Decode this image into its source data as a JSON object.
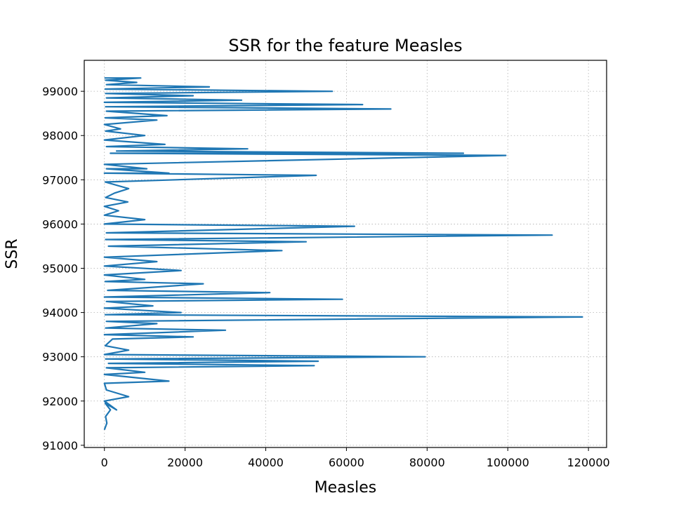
{
  "chart_data": {
    "type": "line",
    "title": "SSR for the feature Measles",
    "xlabel": "Measles",
    "ylabel": "SSR",
    "xlim": [
      -5000,
      124500
    ],
    "ylim": [
      90950,
      99700
    ],
    "xticks": [
      0,
      20000,
      40000,
      60000,
      80000,
      100000,
      120000
    ],
    "yticks": [
      91000,
      92000,
      93000,
      94000,
      95000,
      96000,
      97000,
      98000,
      99000
    ],
    "grid": true,
    "series": [
      {
        "name": "SSR",
        "color": "#1f77b4",
        "points": [
          [
            0,
            91350
          ],
          [
            600,
            91500
          ],
          [
            300,
            91650
          ],
          [
            1500,
            91800
          ],
          [
            200,
            91950
          ],
          [
            3000,
            91800
          ],
          [
            0,
            92000
          ],
          [
            6000,
            92100
          ],
          [
            500,
            92250
          ],
          [
            0,
            92400
          ],
          [
            16000,
            92450
          ],
          [
            0,
            92600
          ],
          [
            10000,
            92650
          ],
          [
            500,
            92750
          ],
          [
            52000,
            92800
          ],
          [
            1000,
            92850
          ],
          [
            53000,
            92900
          ],
          [
            300,
            92950
          ],
          [
            79500,
            93000
          ],
          [
            0,
            93050
          ],
          [
            6000,
            93150
          ],
          [
            200,
            93250
          ],
          [
            2000,
            93400
          ],
          [
            22000,
            93450
          ],
          [
            0,
            93500
          ],
          [
            30000,
            93600
          ],
          [
            300,
            93650
          ],
          [
            13000,
            93750
          ],
          [
            500,
            93800
          ],
          [
            118500,
            93900
          ],
          [
            200,
            93950
          ],
          [
            19000,
            94000
          ],
          [
            0,
            94100
          ],
          [
            12000,
            94150
          ],
          [
            500,
            94250
          ],
          [
            59000,
            94300
          ],
          [
            0,
            94350
          ],
          [
            41000,
            94450
          ],
          [
            800,
            94500
          ],
          [
            24500,
            94650
          ],
          [
            200,
            94700
          ],
          [
            10000,
            94750
          ],
          [
            0,
            94850
          ],
          [
            19000,
            94950
          ],
          [
            0,
            95050
          ],
          [
            13000,
            95150
          ],
          [
            0,
            95250
          ],
          [
            44000,
            95400
          ],
          [
            1000,
            95500
          ],
          [
            50000,
            95600
          ],
          [
            300,
            95650
          ],
          [
            111000,
            95750
          ],
          [
            500,
            95800
          ],
          [
            62000,
            95950
          ],
          [
            0,
            96000
          ],
          [
            10000,
            96100
          ],
          [
            0,
            96200
          ],
          [
            3500,
            96300
          ],
          [
            0,
            96400
          ],
          [
            5800,
            96500
          ],
          [
            300,
            96600
          ],
          [
            2500,
            96700
          ],
          [
            6000,
            96800
          ],
          [
            200,
            96950
          ],
          [
            52500,
            97100
          ],
          [
            0,
            97150
          ],
          [
            16000,
            97150
          ],
          [
            500,
            97250
          ],
          [
            10500,
            97250
          ],
          [
            0,
            97350
          ],
          [
            99500,
            97550
          ],
          [
            1500,
            97600
          ],
          [
            89000,
            97600
          ],
          [
            3000,
            97650
          ],
          [
            35500,
            97700
          ],
          [
            500,
            97750
          ],
          [
            15000,
            97800
          ],
          [
            0,
            97900
          ],
          [
            10000,
            98000
          ],
          [
            300,
            98100
          ],
          [
            4000,
            98150
          ],
          [
            0,
            98250
          ],
          [
            13000,
            98350
          ],
          [
            200,
            98400
          ],
          [
            15500,
            98450
          ],
          [
            500,
            98550
          ],
          [
            71000,
            98600
          ],
          [
            300,
            98650
          ],
          [
            64000,
            98700
          ],
          [
            0,
            98750
          ],
          [
            34000,
            98800
          ],
          [
            500,
            98850
          ],
          [
            22000,
            98900
          ],
          [
            300,
            98950
          ],
          [
            56500,
            99000
          ],
          [
            200,
            99050
          ],
          [
            26000,
            99100
          ],
          [
            500,
            99150
          ],
          [
            8000,
            99200
          ],
          [
            300,
            99250
          ],
          [
            9000,
            99300
          ],
          [
            0,
            99300
          ]
        ]
      }
    ]
  }
}
